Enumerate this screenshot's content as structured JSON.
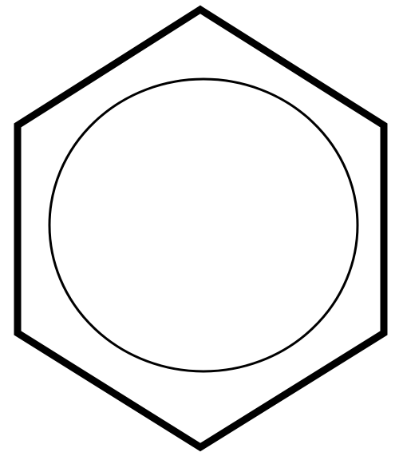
{
  "diagram": {
    "shapes": [
      {
        "kind": "hexagon",
        "fill": "#ffffff",
        "stroke": "#000000"
      },
      {
        "kind": "circle",
        "fill": "#ffffff",
        "stroke": "#000000"
      }
    ],
    "colors": {
      "background": "#ffffff",
      "line": "#000000"
    }
  }
}
